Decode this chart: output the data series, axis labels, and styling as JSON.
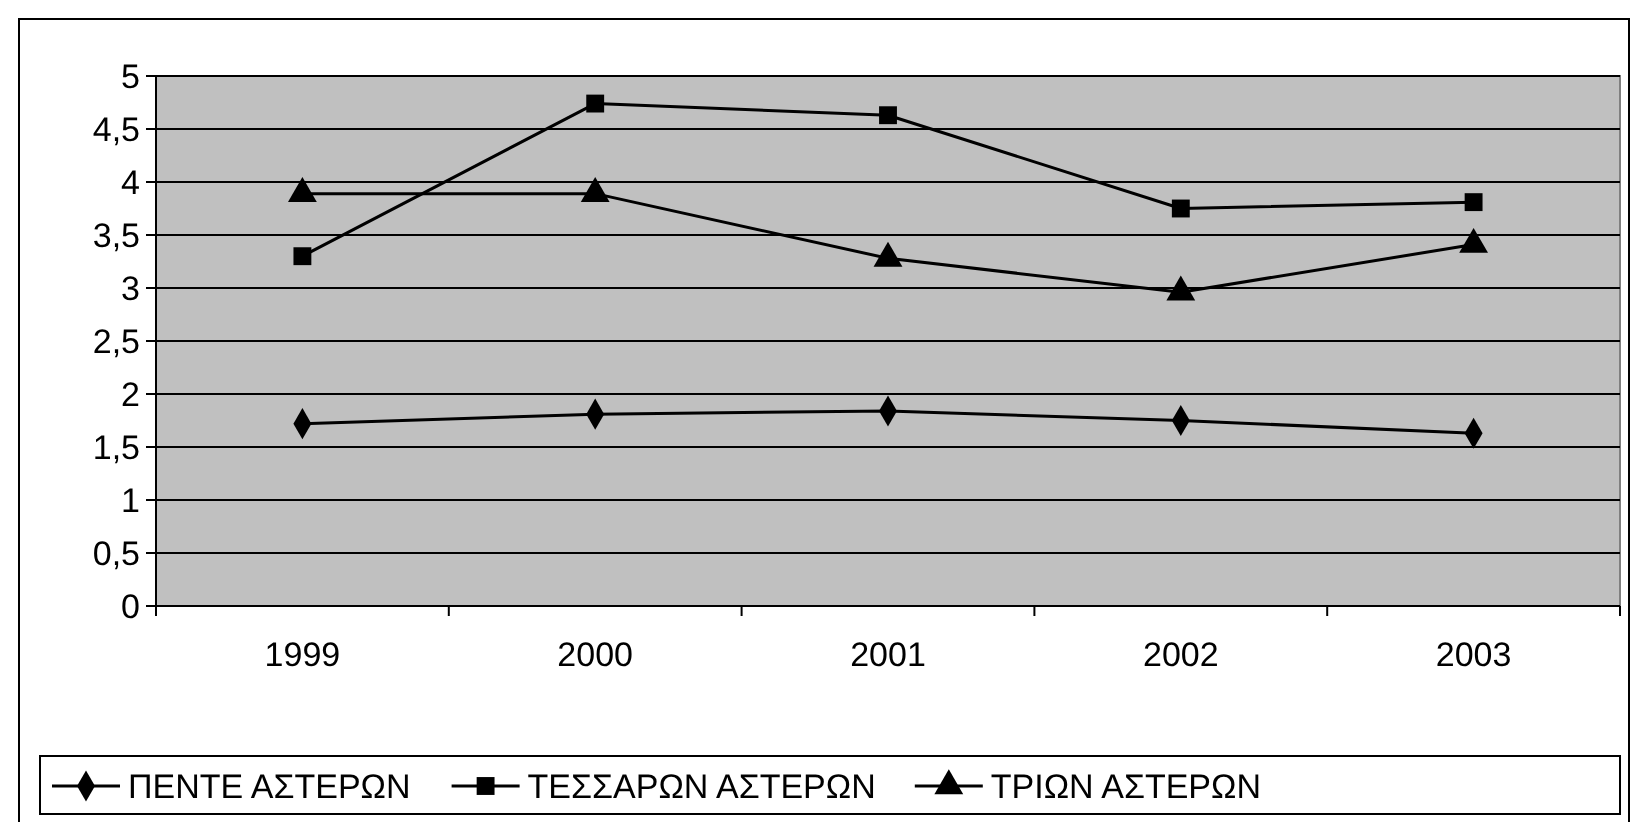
{
  "chart_data": {
    "type": "line",
    "categories": [
      "1999",
      "2000",
      "2001",
      "2002",
      "2003"
    ],
    "series": [
      {
        "name": "ΠΕΝΤΕ ΑΣΤΕΡΩΝ",
        "color": "#000000",
        "marker": "diamond",
        "values": [
          1.72,
          1.81,
          1.84,
          1.75,
          1.63
        ]
      },
      {
        "name": "ΤΕΣΣΑΡΩΝ ΑΣΤΕΡΩΝ",
        "color": "#000000",
        "marker": "square",
        "values": [
          3.3,
          4.74,
          4.63,
          3.75,
          3.81
        ]
      },
      {
        "name": "ΤΡΙΩΝ ΑΣΤΕΡΩΝ",
        "color": "#000000",
        "marker": "triangle",
        "values": [
          3.89,
          3.89,
          3.28,
          2.96,
          3.41
        ]
      }
    ],
    "ylim": [
      0,
      5
    ],
    "yticks": [
      0,
      {
        "value": 0.5,
        "label": "0,5"
      },
      1,
      {
        "value": 1.5,
        "label": "1,5"
      },
      2,
      {
        "value": 2.5,
        "label": "2,5"
      },
      3,
      {
        "value": 3.5,
        "label": "3,5"
      },
      4,
      {
        "value": 4.5,
        "label": "4,5"
      },
      5
    ],
    "grid": "y",
    "legend": "bottom",
    "line_style": "solid"
  }
}
